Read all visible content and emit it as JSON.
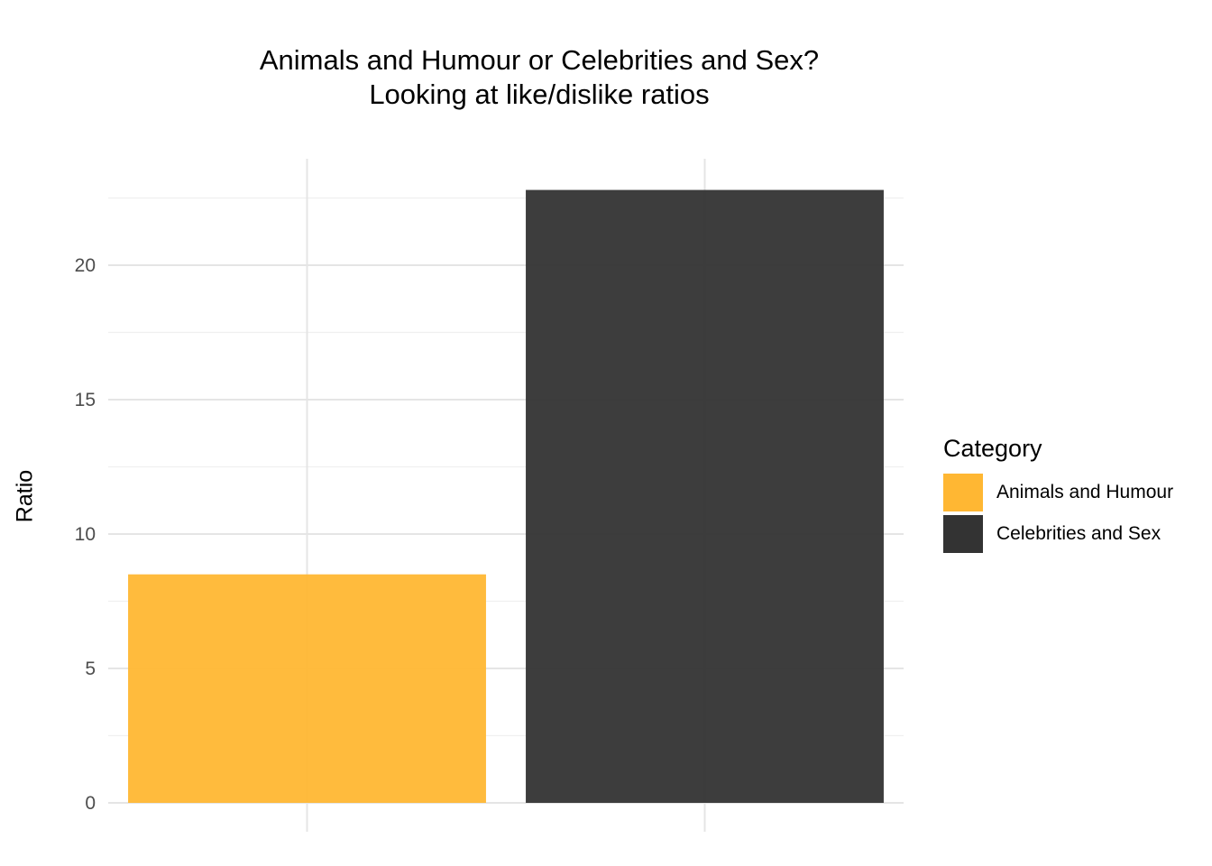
{
  "chart_data": {
    "type": "bar",
    "title": "Animals and Humour or Celebrities and Sex?",
    "subtitle": "Looking at like/dislike ratios",
    "xlabel": "",
    "ylabel": "Ratio",
    "categories": [
      "Animals and Humour",
      "Celebrities and Sex"
    ],
    "values": [
      8.5,
      22.8
    ],
    "colors": [
      "#ffb733",
      "#333333"
    ],
    "ylim": [
      0,
      24
    ],
    "yticks": [
      0,
      5,
      10,
      15,
      20
    ],
    "grid": true,
    "legend": {
      "title": "Category",
      "position": "right",
      "items": [
        "Animals and Humour",
        "Celebrities and Sex"
      ]
    }
  }
}
